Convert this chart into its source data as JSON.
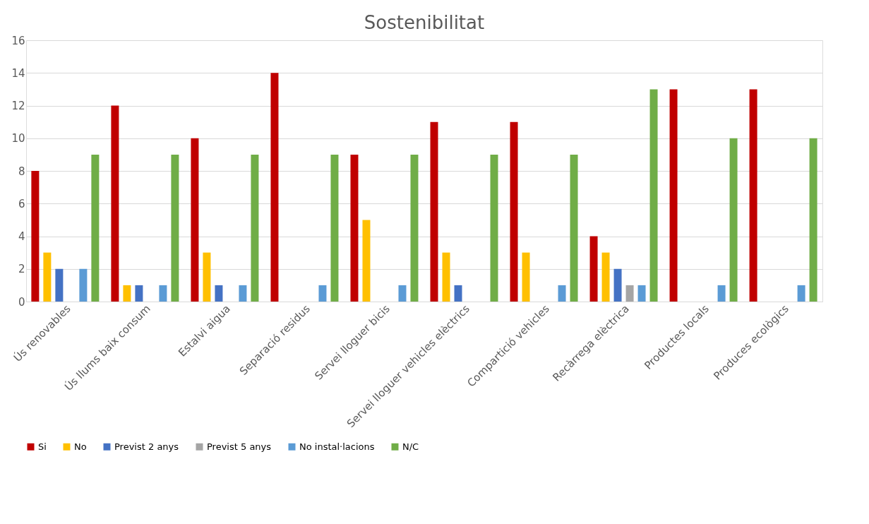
{
  "chart_data": {
    "type": "bar",
    "title": "Sostenibilitat",
    "categories": [
      "Ús renovables",
      "Ús llums baix consum",
      "Estalvi aigua",
      "Separació residus",
      "Servei lloguer bicis",
      "Servei lloguer vehicles elèctrics",
      "Compartició vehicles",
      "Recàrrega elèctrica",
      "Productes locals",
      "Produces ecològics"
    ],
    "series": [
      {
        "name": "Si",
        "color": "#c00000",
        "values": [
          8,
          12,
          10,
          14,
          9,
          11,
          11,
          4,
          13,
          13
        ]
      },
      {
        "name": "No",
        "color": "#ffc000",
        "values": [
          3,
          1,
          3,
          null,
          5,
          3,
          3,
          3,
          null,
          null
        ]
      },
      {
        "name": "Previst 2 anys",
        "color": "#4472c4",
        "values": [
          2,
          1,
          1,
          null,
          null,
          1,
          null,
          2,
          null,
          null
        ]
      },
      {
        "name": "Previst 5 anys",
        "color": "#a5a5a5",
        "values": [
          null,
          null,
          null,
          null,
          null,
          null,
          null,
          1,
          null,
          null
        ]
      },
      {
        "name": "No instal·lacions",
        "color": "#5b9bd5",
        "values": [
          2,
          1,
          1,
          1,
          1,
          null,
          1,
          1,
          1,
          1
        ]
      },
      {
        "name": "N/C",
        "color": "#70ad47",
        "values": [
          9,
          9,
          9,
          9,
          9,
          9,
          9,
          13,
          10,
          10
        ]
      }
    ],
    "ylim": [
      0,
      16
    ],
    "yticks": [
      0,
      2,
      4,
      6,
      8,
      10,
      12,
      14,
      16
    ],
    "grid": "y",
    "legend": "bottom"
  }
}
